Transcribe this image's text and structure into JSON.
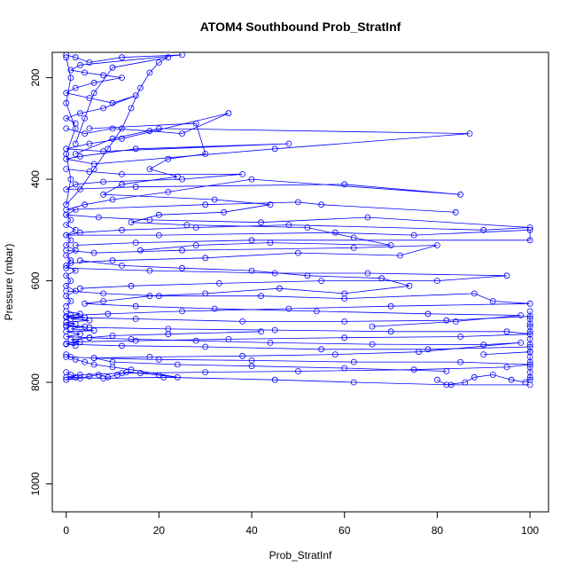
{
  "chart_data": {
    "type": "line",
    "title": "ATOM4 Southbound Prob_StratInf",
    "xlabel": "Prob_StratInf",
    "ylabel": "Pressure (mbar)",
    "xlim": [
      -3,
      104
    ],
    "ylim": [
      1055,
      150
    ],
    "y_reversed": true,
    "x_ticks": [
      0,
      20,
      40,
      60,
      80,
      100
    ],
    "y_ticks": [
      200,
      400,
      600,
      800,
      1000
    ],
    "grid": false,
    "legend": "none",
    "colors": {
      "series": "#0000ff"
    },
    "marker": "open-circle",
    "series": [
      {
        "points": [
          [
            0,
            155
          ],
          [
            2,
            160
          ],
          [
            5,
            170
          ],
          [
            12,
            160
          ],
          [
            25,
            155
          ],
          [
            3,
            175
          ],
          [
            1,
            185
          ],
          [
            4,
            190
          ],
          [
            8,
            195
          ],
          [
            12,
            200
          ],
          [
            6,
            210
          ],
          [
            2,
            220
          ],
          [
            0,
            230
          ],
          [
            5,
            240
          ],
          [
            10,
            250
          ],
          [
            15,
            235
          ],
          [
            8,
            260
          ],
          [
            3,
            270
          ],
          [
            0,
            280
          ],
          [
            2,
            290
          ]
        ]
      },
      {
        "points": [
          [
            0,
            300
          ],
          [
            4,
            310
          ],
          [
            10,
            300
          ],
          [
            18,
            305
          ],
          [
            25,
            310
          ],
          [
            35,
            270
          ],
          [
            12,
            320
          ],
          [
            5,
            330
          ],
          [
            0,
            340
          ],
          [
            8,
            345
          ],
          [
            48,
            330
          ],
          [
            15,
            340
          ],
          [
            3,
            355
          ],
          [
            0,
            360
          ],
          [
            6,
            370
          ],
          [
            45,
            340
          ],
          [
            87,
            310
          ],
          [
            20,
            300
          ],
          [
            10,
            320
          ],
          [
            2,
            350
          ]
        ]
      },
      {
        "points": [
          [
            0,
            380
          ],
          [
            5,
            385
          ],
          [
            12,
            390
          ],
          [
            38,
            390
          ],
          [
            25,
            400
          ],
          [
            8,
            405
          ],
          [
            2,
            410
          ],
          [
            0,
            420
          ],
          [
            15,
            415
          ],
          [
            60,
            410
          ],
          [
            85,
            430
          ],
          [
            40,
            400
          ],
          [
            22,
            425
          ],
          [
            10,
            440
          ],
          [
            4,
            450
          ],
          [
            0,
            460
          ],
          [
            30,
            450
          ],
          [
            50,
            445
          ],
          [
            55,
            450
          ],
          [
            84,
            465
          ]
        ]
      },
      {
        "points": [
          [
            0,
            470
          ],
          [
            7,
            475
          ],
          [
            18,
            480
          ],
          [
            42,
            485
          ],
          [
            65,
            475
          ],
          [
            100,
            495
          ],
          [
            90,
            500
          ],
          [
            48,
            490
          ],
          [
            28,
            495
          ],
          [
            12,
            500
          ],
          [
            3,
            505
          ],
          [
            0,
            510
          ],
          [
            20,
            510
          ],
          [
            58,
            505
          ],
          [
            75,
            510
          ],
          [
            100,
            500
          ],
          [
            100,
            520
          ],
          [
            40,
            520
          ],
          [
            15,
            525
          ],
          [
            2,
            530
          ]
        ]
      },
      {
        "points": [
          [
            0,
            540
          ],
          [
            6,
            545
          ],
          [
            25,
            540
          ],
          [
            62,
            535
          ],
          [
            80,
            530
          ],
          [
            72,
            550
          ],
          [
            50,
            545
          ],
          [
            30,
            555
          ],
          [
            10,
            560
          ],
          [
            1,
            565
          ],
          [
            0,
            575
          ],
          [
            18,
            580
          ],
          [
            45,
            585
          ],
          [
            65,
            585
          ],
          [
            95,
            590
          ],
          [
            80,
            600
          ],
          [
            55,
            600
          ],
          [
            33,
            605
          ],
          [
            14,
            610
          ],
          [
            3,
            615
          ]
        ]
      },
      {
        "points": [
          [
            0,
            620
          ],
          [
            8,
            625
          ],
          [
            20,
            630
          ],
          [
            42,
            630
          ],
          [
            60,
            635
          ],
          [
            88,
            625
          ],
          [
            92,
            640
          ],
          [
            100,
            645
          ],
          [
            70,
            650
          ],
          [
            48,
            655
          ],
          [
            25,
            660
          ],
          [
            9,
            665
          ],
          [
            1,
            668
          ],
          [
            0,
            672
          ],
          [
            15,
            675
          ],
          [
            38,
            680
          ],
          [
            60,
            680
          ],
          [
            82,
            678
          ],
          [
            100,
            670
          ],
          [
            100,
            685
          ]
        ]
      },
      {
        "points": [
          [
            0,
            690
          ],
          [
            5,
            692
          ],
          [
            22,
            695
          ],
          [
            45,
            697
          ],
          [
            70,
            700
          ],
          [
            95,
            700
          ],
          [
            100,
            705
          ],
          [
            85,
            710
          ],
          [
            60,
            712
          ],
          [
            35,
            715
          ],
          [
            15,
            718
          ],
          [
            2,
            720
          ],
          [
            0,
            725
          ],
          [
            12,
            728
          ],
          [
            30,
            730
          ],
          [
            55,
            735
          ],
          [
            78,
            735
          ],
          [
            100,
            730
          ],
          [
            100,
            740
          ],
          [
            90,
            745
          ]
        ]
      },
      {
        "points": [
          [
            0,
            750
          ],
          [
            6,
            752
          ],
          [
            20,
            755
          ],
          [
            40,
            757
          ],
          [
            62,
            760
          ],
          [
            85,
            760
          ],
          [
            100,
            765
          ],
          [
            95,
            770
          ],
          [
            75,
            775
          ],
          [
            50,
            778
          ],
          [
            30,
            780
          ],
          [
            12,
            782
          ],
          [
            3,
            785
          ],
          [
            0,
            790
          ],
          [
            8,
            792
          ],
          [
            21,
            790
          ],
          [
            45,
            795
          ],
          [
            62,
            800
          ],
          [
            83,
            805
          ],
          [
            100,
            805
          ]
        ]
      },
      {
        "points": [
          [
            100,
            660
          ],
          [
            100,
            675
          ],
          [
            100,
            690
          ],
          [
            100,
            700
          ],
          [
            100,
            715
          ],
          [
            100,
            725
          ],
          [
            100,
            740
          ],
          [
            100,
            750
          ],
          [
            100,
            760
          ],
          [
            100,
            770
          ],
          [
            100,
            780
          ],
          [
            100,
            790
          ],
          [
            100,
            795
          ],
          [
            99,
            800
          ],
          [
            96,
            795
          ],
          [
            92,
            785
          ],
          [
            88,
            790
          ],
          [
            86,
            800
          ],
          [
            82,
            805
          ],
          [
            80,
            795
          ]
        ]
      },
      {
        "points": [
          [
            0,
            650
          ],
          [
            1,
            640
          ],
          [
            0,
            630
          ],
          [
            2,
            620
          ],
          [
            0,
            610
          ],
          [
            1,
            600
          ],
          [
            0,
            590
          ],
          [
            2,
            580
          ],
          [
            0,
            570
          ],
          [
            1,
            560
          ],
          [
            0,
            550
          ],
          [
            2,
            540
          ],
          [
            0,
            530
          ],
          [
            1,
            520
          ],
          [
            0,
            510
          ],
          [
            2,
            500
          ],
          [
            0,
            490
          ],
          [
            1,
            480
          ],
          [
            0,
            470
          ],
          [
            2,
            460
          ]
        ]
      },
      {
        "points": [
          [
            0,
            660
          ],
          [
            3,
            665
          ],
          [
            0,
            670
          ],
          [
            4,
            672
          ],
          [
            1,
            675
          ],
          [
            5,
            678
          ],
          [
            0,
            682
          ],
          [
            2,
            685
          ],
          [
            0,
            688
          ],
          [
            4,
            690
          ],
          [
            1,
            695
          ],
          [
            6,
            698
          ],
          [
            0,
            700
          ],
          [
            3,
            705
          ],
          [
            0,
            710
          ],
          [
            5,
            712
          ],
          [
            1,
            716
          ],
          [
            3,
            720
          ],
          [
            0,
            724
          ],
          [
            2,
            728
          ]
        ]
      },
      {
        "points": [
          [
            0,
            780
          ],
          [
            1,
            785
          ],
          [
            2,
            790
          ],
          [
            0,
            795
          ],
          [
            3,
            792
          ],
          [
            5,
            788
          ],
          [
            7,
            785
          ],
          [
            9,
            790
          ],
          [
            11,
            785
          ],
          [
            13,
            780
          ],
          [
            16,
            782
          ],
          [
            20,
            786
          ],
          [
            24,
            790
          ],
          [
            14,
            775
          ],
          [
            10,
            770
          ],
          [
            6,
            765
          ],
          [
            4,
            760
          ],
          [
            2,
            755
          ],
          [
            1,
            750
          ],
          [
            0,
            745
          ]
        ]
      },
      {
        "points": [
          [
            0,
            160
          ],
          [
            1,
            200
          ],
          [
            0,
            250
          ],
          [
            2,
            300
          ],
          [
            0,
            350
          ],
          [
            1,
            400
          ],
          [
            0,
            450
          ],
          [
            3,
            420
          ],
          [
            6,
            380
          ],
          [
            9,
            340
          ],
          [
            12,
            300
          ],
          [
            14,
            260
          ],
          [
            16,
            220
          ],
          [
            18,
            190
          ],
          [
            20,
            170
          ],
          [
            22,
            160
          ],
          [
            10,
            180
          ],
          [
            6,
            230
          ],
          [
            4,
            280
          ],
          [
            2,
            330
          ]
        ]
      },
      {
        "points": [
          [
            5,
            300
          ],
          [
            28,
            290
          ],
          [
            30,
            350
          ],
          [
            22,
            360
          ],
          [
            18,
            380
          ],
          [
            24,
            395
          ],
          [
            12,
            410
          ],
          [
            8,
            430
          ],
          [
            32,
            440
          ],
          [
            44,
            450
          ],
          [
            34,
            465
          ],
          [
            20,
            470
          ],
          [
            14,
            485
          ],
          [
            26,
            490
          ],
          [
            52,
            495
          ],
          [
            62,
            515
          ],
          [
            70,
            530
          ],
          [
            44,
            525
          ],
          [
            28,
            530
          ],
          [
            16,
            540
          ]
        ]
      },
      {
        "points": [
          [
            3,
            560
          ],
          [
            12,
            570
          ],
          [
            25,
            575
          ],
          [
            40,
            580
          ],
          [
            52,
            590
          ],
          [
            68,
            595
          ],
          [
            74,
            610
          ],
          [
            60,
            625
          ],
          [
            46,
            615
          ],
          [
            30,
            625
          ],
          [
            18,
            630
          ],
          [
            8,
            640
          ],
          [
            4,
            645
          ],
          [
            15,
            650
          ],
          [
            32,
            655
          ],
          [
            54,
            660
          ],
          [
            78,
            665
          ],
          [
            98,
            668
          ],
          [
            84,
            680
          ],
          [
            66,
            690
          ]
        ]
      },
      {
        "points": [
          [
            42,
            700
          ],
          [
            22,
            705
          ],
          [
            10,
            708
          ],
          [
            5,
            712
          ],
          [
            14,
            715
          ],
          [
            28,
            718
          ],
          [
            44,
            722
          ],
          [
            66,
            725
          ],
          [
            90,
            726
          ],
          [
            98,
            722
          ],
          [
            76,
            740
          ],
          [
            58,
            745
          ],
          [
            38,
            748
          ],
          [
            18,
            750
          ],
          [
            6,
            752
          ],
          [
            10,
            760
          ],
          [
            24,
            765
          ],
          [
            40,
            768
          ],
          [
            60,
            772
          ],
          [
            82,
            778
          ]
        ]
      }
    ]
  }
}
